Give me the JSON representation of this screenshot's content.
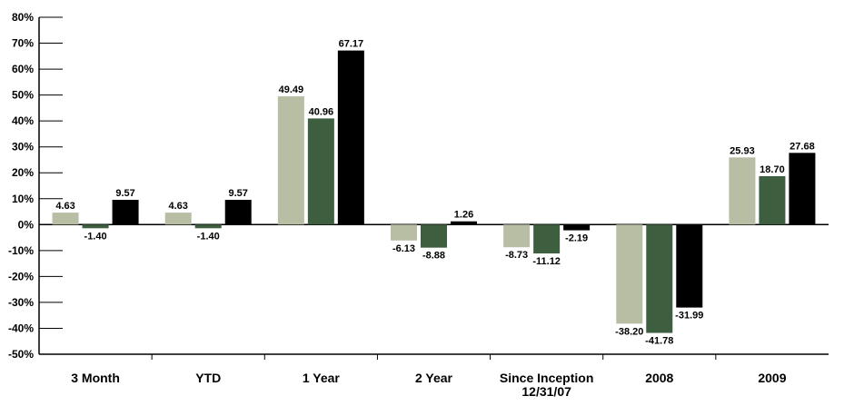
{
  "chart_data": {
    "type": "bar",
    "title": "",
    "xlabel": "",
    "ylabel": "",
    "ylim": [
      -50,
      80
    ],
    "yticks": [
      80,
      70,
      60,
      50,
      40,
      30,
      20,
      10,
      0,
      -10,
      -20,
      -30,
      -40,
      -50
    ],
    "ytick_labels": [
      "80%",
      "70%",
      "60%",
      "50%",
      "40%",
      "30%",
      "20%",
      "10%",
      "0%",
      "-10%",
      "-20%",
      "-30%",
      "-40%",
      "-50%"
    ],
    "categories": [
      [
        "3 Month"
      ],
      [
        "YTD"
      ],
      [
        "1 Year"
      ],
      [
        "2 Year"
      ],
      [
        "Since Inception",
        "12/31/07"
      ],
      [
        "2008"
      ],
      [
        "2009"
      ]
    ],
    "series": [
      {
        "color": "#b8bea4",
        "values": [
          4.63,
          4.63,
          49.49,
          -6.13,
          -8.73,
          -38.2,
          25.93
        ],
        "labels": [
          "4.63",
          "4.63",
          "49.49",
          "-6.13",
          "-8.73",
          "-38.20",
          "25.93"
        ]
      },
      {
        "color": "#3e5e40",
        "values": [
          -1.4,
          -1.4,
          40.96,
          -8.88,
          -11.12,
          -41.78,
          18.7
        ],
        "labels": [
          "-1.40",
          "-1.40",
          "40.96",
          "-8.88",
          "-11.12",
          "-41.78",
          "18.70"
        ]
      },
      {
        "color": "#000000",
        "values": [
          9.57,
          9.57,
          67.17,
          1.26,
          -2.19,
          -31.99,
          27.68
        ],
        "labels": [
          "9.57",
          "9.57",
          "67.17",
          "1.26",
          "-2.19",
          "-31.99",
          "27.68"
        ]
      }
    ],
    "grid": false,
    "legend": "none"
  }
}
